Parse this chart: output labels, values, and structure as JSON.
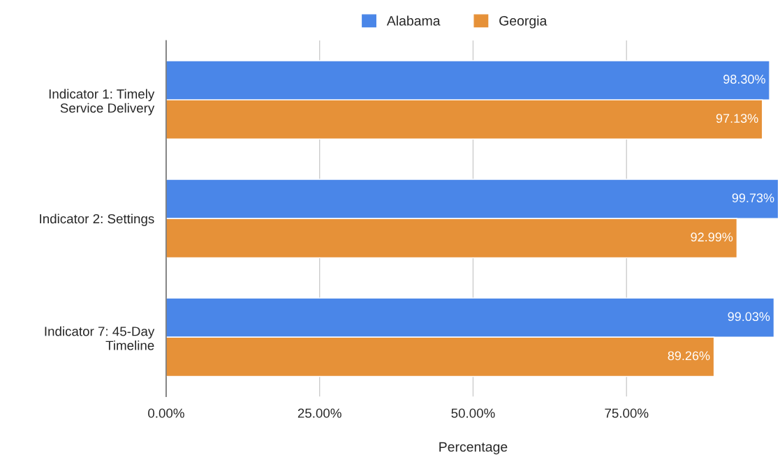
{
  "chart_data": {
    "type": "bar",
    "orientation": "horizontal",
    "xlabel": "Percentage",
    "categories": [
      "Indicator 1: Timely\nService Delivery",
      "Indicator 2: Settings",
      "Indicator 7: 45-Day\nTimeline"
    ],
    "series": [
      {
        "name": "Alabama",
        "color": "#4a86e8",
        "values": [
          98.3,
          99.73,
          99.03
        ],
        "value_labels": [
          "98.30%",
          "99.73%",
          "99.03%"
        ]
      },
      {
        "name": "Georgia",
        "color": "#e69138",
        "values": [
          97.13,
          92.99,
          89.26
        ],
        "value_labels": [
          "97.13%",
          "92.99%",
          "89.26%"
        ]
      }
    ],
    "xlim": [
      0,
      100
    ],
    "xticks": [
      {
        "value": 0,
        "label": "0.00%"
      },
      {
        "value": 25,
        "label": "25.00%"
      },
      {
        "value": 50,
        "label": "50.00%"
      },
      {
        "value": 75,
        "label": "75.00%"
      }
    ],
    "grid": "x",
    "legend": "top"
  }
}
